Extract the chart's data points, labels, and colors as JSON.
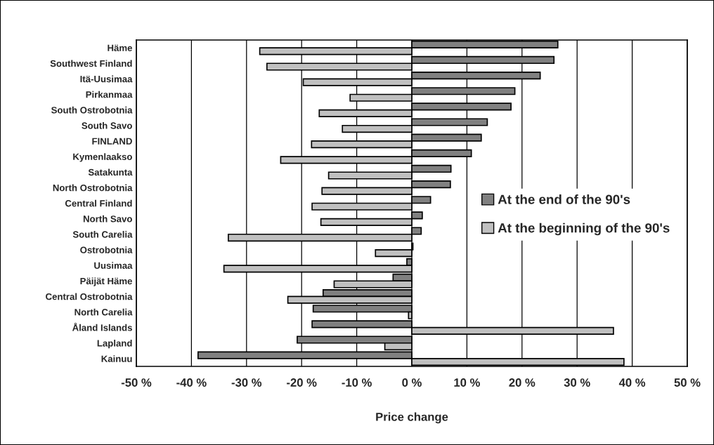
{
  "chart_data": {
    "type": "bar",
    "orientation": "horizontal",
    "xlabel": "Price change",
    "categories": [
      "Häme",
      "Southwest Finland",
      "Itä-Uusimaa",
      "Pirkanmaa",
      "South Ostrobotnia",
      "South Savo",
      "FINLAND",
      "Kymenlaakso",
      "Satakunta",
      "North Ostrobotnia",
      "Central Finland",
      "North Savo",
      "South Carelia",
      "Ostrobotnia",
      "Uusimaa",
      "Päijät Häme",
      "Central Ostrobotnia",
      "North Carelia",
      "Åland Islands",
      "Lapland",
      "Kainuu"
    ],
    "series": [
      {
        "name": "At the end of the 90's",
        "color": "#808080",
        "values": [
          26.5,
          25.8,
          23.3,
          18.7,
          18.0,
          13.7,
          12.6,
          10.8,
          7.1,
          7.0,
          3.4,
          1.9,
          1.7,
          0.2,
          -0.9,
          -3.4,
          -16.1,
          -17.9,
          -18.1,
          -20.8,
          -38.8
        ]
      },
      {
        "name": "At the beginning of the 90's",
        "color": "#c0c0c0",
        "values": [
          -27.6,
          -26.3,
          -19.7,
          -11.2,
          -16.8,
          -12.6,
          -18.2,
          -23.8,
          -15.1,
          -16.3,
          -18.1,
          -16.5,
          -33.3,
          -6.6,
          -34.1,
          -14.1,
          -22.5,
          -0.6,
          36.6,
          -4.9,
          38.5
        ]
      }
    ],
    "xlim": [
      -50,
      50
    ],
    "xticks": [
      {
        "value": -50,
        "label": "-50 %"
      },
      {
        "value": -40,
        "label": "-40 %"
      },
      {
        "value": -30,
        "label": "-30 %"
      },
      {
        "value": -20,
        "label": "-20 %"
      },
      {
        "value": -10,
        "label": "-10 %"
      },
      {
        "value": 0,
        "label": "0 %"
      },
      {
        "value": 10,
        "label": "10 %"
      },
      {
        "value": 20,
        "label": "20 %"
      },
      {
        "value": 30,
        "label": "30 %"
      },
      {
        "value": 40,
        "label": "40 %"
      },
      {
        "value": 50,
        "label": "50 %"
      }
    ],
    "grid": "x",
    "legend": "center right"
  }
}
